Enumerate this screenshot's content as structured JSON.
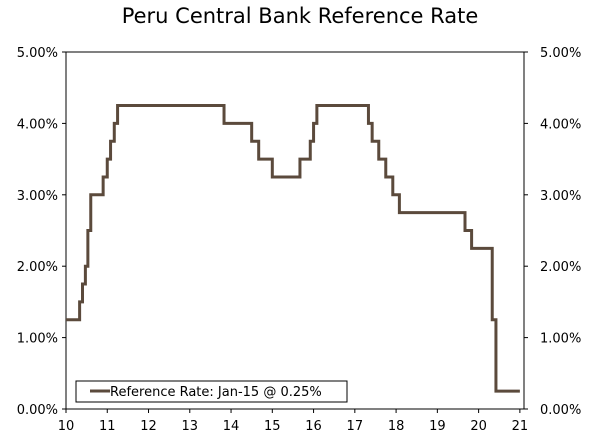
{
  "chart_data": {
    "type": "line",
    "title": "Peru Central Bank Reference Rate",
    "xlabel": "",
    "ylabel": "",
    "xlim": [
      10,
      21.1
    ],
    "ylim": [
      0,
      5
    ],
    "x_ticks": [
      10,
      11,
      12,
      13,
      14,
      15,
      16,
      17,
      18,
      19,
      20,
      21
    ],
    "x_tick_labels": [
      "10",
      "11",
      "12",
      "13",
      "14",
      "15",
      "16",
      "17",
      "18",
      "19",
      "20",
      "21"
    ],
    "y_ticks": [
      0,
      1,
      2,
      3,
      4,
      5
    ],
    "y_tick_labels": [
      "0.00%",
      "1.00%",
      "2.00%",
      "3.00%",
      "4.00%",
      "5.00%"
    ],
    "secondary_y_axis": true,
    "grid": false,
    "step_line": true,
    "legend_position": "bottom-left",
    "colors": {
      "series": "#5b4a3c",
      "axis": "#000000",
      "background": "#ffffff"
    },
    "series": [
      {
        "name": "Reference Rate: Jan-15 @ 0.25%",
        "x": [
          10.0,
          10.33,
          10.4,
          10.47,
          10.53,
          10.6,
          10.67,
          10.9,
          11.0,
          11.08,
          11.17,
          11.25,
          11.33,
          13.83,
          14.5,
          14.67,
          15.0,
          15.67,
          15.92,
          16.0,
          16.08,
          16.17,
          17.33,
          17.42,
          17.58,
          17.75,
          17.92,
          18.08,
          18.17,
          19.67,
          19.83,
          20.33,
          20.42,
          21.0
        ],
        "values": [
          1.25,
          1.5,
          1.75,
          2.0,
          2.5,
          3.0,
          3.0,
          3.25,
          3.5,
          3.75,
          4.0,
          4.25,
          4.25,
          4.0,
          3.75,
          3.5,
          3.25,
          3.5,
          3.75,
          4.0,
          4.25,
          4.25,
          4.0,
          3.75,
          3.5,
          3.25,
          3.0,
          2.75,
          2.75,
          2.5,
          2.25,
          1.25,
          0.25,
          0.25
        ]
      }
    ]
  }
}
